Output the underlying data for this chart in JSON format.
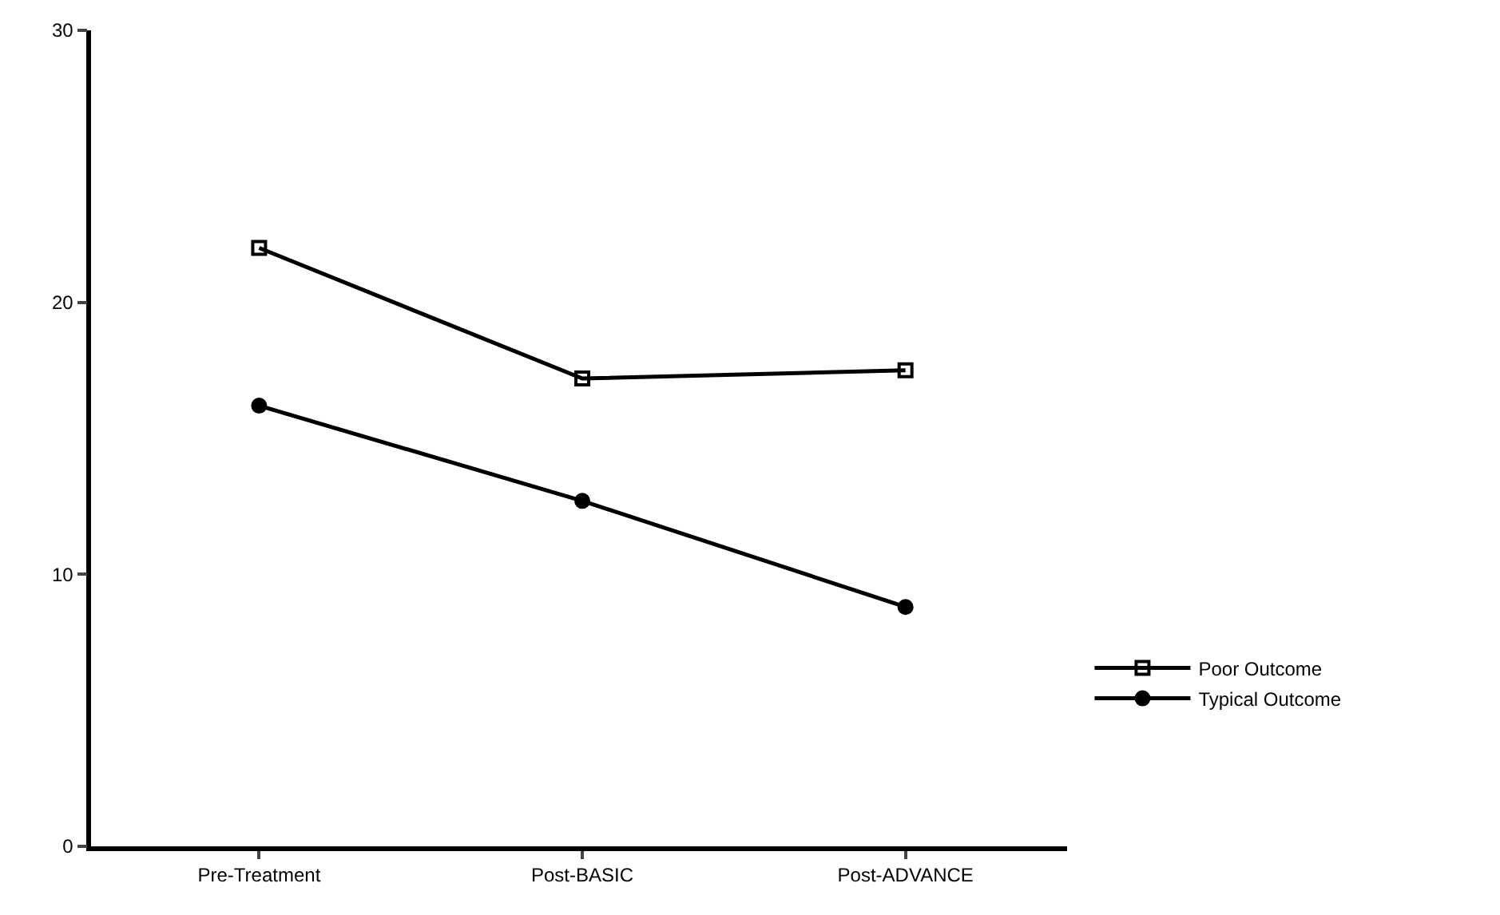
{
  "chart_data": {
    "type": "line",
    "categories": [
      "Pre-Treatment",
      "Post-BASIC",
      "Post-ADVANCE"
    ],
    "series": [
      {
        "name": "Poor Outcome",
        "color": "#000000",
        "marker": "square-open",
        "values": [
          22.0,
          17.2,
          17.5
        ]
      },
      {
        "name": "Typical Outcome",
        "color": "#000000",
        "marker": "circle",
        "values": [
          16.2,
          12.7,
          8.8
        ]
      }
    ],
    "ylim": [
      0,
      30
    ],
    "yticks": [
      0,
      10,
      20,
      30
    ],
    "legend": "right",
    "line_style": "solid"
  }
}
